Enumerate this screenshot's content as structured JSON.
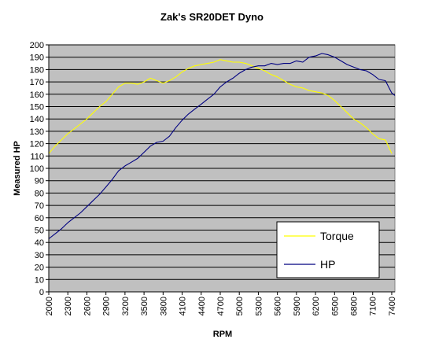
{
  "chart_data": {
    "type": "line",
    "title": "Zak's SR20DET Dyno",
    "xlabel": "RPM",
    "ylabel": "Measured HP",
    "ylim": [
      0,
      200
    ],
    "y_tick_step": 10,
    "x_ticks": [
      2000,
      2300,
      2600,
      2900,
      3200,
      3500,
      3800,
      4100,
      4400,
      4700,
      5000,
      5300,
      5600,
      5900,
      6200,
      6500,
      6800,
      7100,
      7400
    ],
    "xlim": [
      2000,
      7450
    ],
    "grid": "horizontal",
    "plot_background": "#c0c0c0",
    "legend_position": "bottom-right",
    "series": [
      {
        "name": "Torque",
        "color": "#ffff00",
        "points": [
          [
            2000,
            112
          ],
          [
            2100,
            118
          ],
          [
            2200,
            123
          ],
          [
            2300,
            128
          ],
          [
            2400,
            132
          ],
          [
            2500,
            136
          ],
          [
            2600,
            140
          ],
          [
            2700,
            145
          ],
          [
            2800,
            150
          ],
          [
            2900,
            154
          ],
          [
            3000,
            160
          ],
          [
            3100,
            166
          ],
          [
            3200,
            169
          ],
          [
            3300,
            169
          ],
          [
            3400,
            168
          ],
          [
            3500,
            170
          ],
          [
            3600,
            173
          ],
          [
            3700,
            171
          ],
          [
            3800,
            169
          ],
          [
            3900,
            171
          ],
          [
            4000,
            174
          ],
          [
            4100,
            178
          ],
          [
            4200,
            181
          ],
          [
            4300,
            183
          ],
          [
            4400,
            184
          ],
          [
            4500,
            185
          ],
          [
            4600,
            186
          ],
          [
            4700,
            188
          ],
          [
            4800,
            187
          ],
          [
            4900,
            186
          ],
          [
            5000,
            186
          ],
          [
            5100,
            185
          ],
          [
            5200,
            183
          ],
          [
            5300,
            181
          ],
          [
            5400,
            179
          ],
          [
            5500,
            176
          ],
          [
            5600,
            174
          ],
          [
            5700,
            171
          ],
          [
            5800,
            168
          ],
          [
            5900,
            166
          ],
          [
            6000,
            165
          ],
          [
            6100,
            163
          ],
          [
            6200,
            162
          ],
          [
            6300,
            161
          ],
          [
            6400,
            159
          ],
          [
            6500,
            155
          ],
          [
            6600,
            150
          ],
          [
            6700,
            145
          ],
          [
            6800,
            140
          ],
          [
            6900,
            137
          ],
          [
            7000,
            133
          ],
          [
            7100,
            128
          ],
          [
            7200,
            124
          ],
          [
            7300,
            123
          ],
          [
            7400,
            112
          ]
        ]
      },
      {
        "name": "HP",
        "color": "#000080",
        "points": [
          [
            2000,
            43
          ],
          [
            2100,
            47
          ],
          [
            2200,
            51
          ],
          [
            2300,
            56
          ],
          [
            2400,
            60
          ],
          [
            2500,
            64
          ],
          [
            2600,
            69
          ],
          [
            2700,
            74
          ],
          [
            2800,
            79
          ],
          [
            2900,
            85
          ],
          [
            3000,
            91
          ],
          [
            3100,
            98
          ],
          [
            3200,
            102
          ],
          [
            3300,
            105
          ],
          [
            3400,
            108
          ],
          [
            3500,
            113
          ],
          [
            3600,
            118
          ],
          [
            3700,
            121
          ],
          [
            3800,
            122
          ],
          [
            3900,
            126
          ],
          [
            4000,
            133
          ],
          [
            4100,
            139
          ],
          [
            4200,
            144
          ],
          [
            4300,
            148
          ],
          [
            4400,
            152
          ],
          [
            4500,
            156
          ],
          [
            4600,
            160
          ],
          [
            4700,
            166
          ],
          [
            4800,
            170
          ],
          [
            4900,
            173
          ],
          [
            5000,
            177
          ],
          [
            5100,
            180
          ],
          [
            5200,
            182
          ],
          [
            5300,
            183
          ],
          [
            5400,
            183
          ],
          [
            5500,
            185
          ],
          [
            5600,
            184
          ],
          [
            5700,
            185
          ],
          [
            5800,
            185
          ],
          [
            5900,
            187
          ],
          [
            6000,
            186
          ],
          [
            6100,
            190
          ],
          [
            6200,
            191
          ],
          [
            6300,
            193
          ],
          [
            6400,
            192
          ],
          [
            6500,
            190
          ],
          [
            6600,
            187
          ],
          [
            6700,
            184
          ],
          [
            6800,
            182
          ],
          [
            6900,
            180
          ],
          [
            7000,
            179
          ],
          [
            7100,
            176
          ],
          [
            7200,
            172
          ],
          [
            7300,
            171
          ],
          [
            7400,
            161
          ],
          [
            7450,
            159
          ]
        ]
      }
    ]
  }
}
